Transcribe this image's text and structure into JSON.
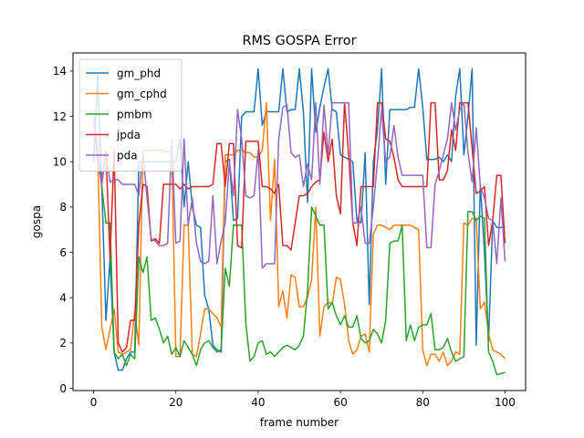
{
  "chart_data": {
    "type": "line",
    "title": "RMS GOSPA Error",
    "xlabel": "frame number",
    "ylabel": "gospa",
    "xlim": [
      -5,
      105
    ],
    "ylim": [
      -0.1,
      14.8
    ],
    "xticks": [
      0,
      20,
      40,
      60,
      80,
      100
    ],
    "yticks": [
      0,
      2,
      4,
      6,
      8,
      10,
      12,
      14
    ],
    "grid": false,
    "legend": "top-left",
    "series": [
      {
        "name": "gm_phd",
        "color": "#1f77b4",
        "values": [
          10.0,
          13.8,
          8.9,
          3.0,
          5.7,
          1.6,
          0.8,
          0.8,
          1.3,
          1.6,
          1.6,
          10.0,
          10.0,
          10.0,
          10.0,
          10.0,
          10.0,
          10.0,
          10.0,
          10.0,
          10.0,
          11.0,
          8.0,
          10.0,
          8.0,
          7.2,
          7.1,
          4.1,
          3.5,
          1.9,
          1.7,
          1.6,
          10.0,
          10.1,
          7.4,
          7.5,
          12.0,
          12.2,
          12.2,
          12.2,
          14.1,
          11.6,
          12.2,
          12.2,
          12.2,
          12.2,
          14.1,
          12.2,
          12.3,
          12.3,
          14.1,
          12.2,
          8.2,
          14.1,
          11.3,
          12.4,
          13.3,
          14.1,
          12.3,
          12.2,
          10.3,
          10.2,
          10.1,
          10.0,
          7.4,
          7.3,
          10.4,
          3.7,
          10.0,
          11.4,
          14.1,
          9.0,
          12.3,
          12.3,
          12.3,
          12.3,
          12.3,
          12.4,
          12.4,
          14.1,
          12.4,
          10.1,
          10.1,
          10.1,
          10.2,
          10.0,
          10.3,
          10.0,
          12.9,
          14.1,
          10.3,
          12.0,
          14.1,
          1.9,
          9.0,
          6.0,
          2.1,
          7.4,
          7.1,
          7.1,
          7.1
        ]
      },
      {
        "name": "gm_cphd",
        "color": "#ff7f0e",
        "values": [
          12.0,
          10.5,
          2.7,
          1.7,
          2.6,
          3.5,
          1.6,
          1.5,
          1.6,
          1.7,
          3.4,
          1.9,
          10.5,
          10.5,
          10.5,
          10.5,
          10.5,
          10.5,
          10.4,
          10.5,
          1.4,
          1.4,
          7.2,
          7.2,
          1.5,
          1.4,
          2.4,
          3.5,
          3.5,
          3.3,
          3.1,
          2.7,
          10.3,
          10.3,
          10.3,
          10.5,
          10.5,
          10.4,
          10.4,
          10.2,
          10.2,
          10.5,
          12.6,
          7.4,
          10.1,
          3.6,
          4.3,
          3.1,
          5.0,
          4.9,
          3.6,
          3.6,
          4.0,
          4.8,
          8.0,
          2.3,
          3.6,
          3.8,
          3.7,
          4.9,
          4.8,
          3.7,
          2.1,
          1.5,
          1.7,
          2.3,
          2.4,
          1.6,
          6.8,
          7.2,
          7.2,
          7.1,
          7.0,
          7.2,
          7.2,
          7.2,
          7.2,
          7.2,
          7.1,
          7.0,
          1.7,
          1.0,
          1.5,
          1.5,
          1.2,
          1.6,
          1.0,
          1.2,
          1.6,
          1.5,
          7.3,
          7.2,
          7.5,
          7.5,
          3.5,
          3.8,
          2.4,
          1.7,
          1.6,
          1.5,
          1.3
        ]
      },
      {
        "name": "pmbm",
        "color": "#2ca02c",
        "values": [
          12.0,
          10.5,
          8.9,
          7.3,
          7.3,
          1.6,
          1.3,
          1.5,
          1.0,
          1.5,
          1.3,
          5.8,
          5.1,
          5.8,
          3.0,
          3.1,
          2.6,
          2.0,
          2.3,
          1.5,
          1.8,
          1.4,
          2.1,
          1.8,
          1.5,
          1.0,
          1.7,
          2.0,
          2.1,
          1.8,
          1.6,
          1.7,
          5.3,
          4.5,
          7.2,
          7.2,
          7.2,
          2.9,
          1.2,
          1.4,
          2.0,
          2.1,
          1.5,
          1.6,
          1.4,
          1.6,
          1.8,
          1.9,
          1.8,
          1.7,
          1.9,
          2.3,
          4.3,
          8.0,
          7.6,
          7.2,
          7.2,
          3.5,
          3.8,
          3.2,
          2.8,
          3.2,
          2.7,
          2.7,
          3.2,
          2.2,
          2.0,
          2.1,
          2.6,
          2.4,
          2.0,
          3.0,
          6.4,
          6.5,
          6.5,
          7.2,
          2.1,
          2.8,
          2.1,
          2.7,
          2.8,
          2.8,
          3.3,
          1.7,
          1.7,
          1.8,
          2.2,
          1.6,
          1.2,
          1.3,
          1.4,
          7.8,
          7.8,
          7.4,
          7.6,
          7.5,
          1.6,
          1.2,
          0.6,
          0.65,
          0.7
        ]
      },
      {
        "name": "jpda",
        "color": "#d62728",
        "values": [
          12.0,
          10.1,
          9.0,
          10.5,
          5.7,
          10.5,
          2.0,
          1.6,
          1.8,
          3.0,
          3.0,
          7.2,
          9.0,
          8.9,
          6.5,
          6.6,
          6.4,
          9.0,
          9.0,
          9.0,
          9.0,
          8.8,
          9.0,
          8.8,
          8.9,
          8.9,
          8.9,
          8.9,
          8.9,
          9.0,
          10.8,
          10.8,
          8.9,
          10.8,
          10.8,
          6.3,
          6.2,
          10.9,
          10.9,
          10.9,
          10.9,
          8.9,
          8.9,
          8.8,
          8.6,
          9.0,
          6.3,
          6.3,
          6.1,
          7.3,
          8.5,
          8.5,
          8.6,
          8.9,
          9.1,
          9.2,
          11.3,
          10.0,
          11.0,
          8.5,
          7.7,
          12.6,
          10.3,
          7.3,
          6.3,
          8.9,
          8.9,
          8.9,
          8.9,
          12.6,
          12.6,
          11.0,
          10.9,
          10.2,
          9.2,
          8.9,
          8.9,
          8.9,
          8.9,
          8.9,
          8.9,
          8.9,
          12.6,
          12.6,
          9.2,
          9.2,
          9.6,
          11.4,
          10.5,
          12.6,
          12.6,
          12.6,
          10.6,
          8.6,
          8.7,
          8.9,
          6.3,
          7.4,
          9.4,
          9.4,
          6.4
        ]
      },
      {
        "name": "pda",
        "color": "#9467bd",
        "values": [
          12.0,
          10.5,
          9.0,
          10.5,
          9.1,
          9.2,
          9.2,
          9.0,
          9.0,
          9.0,
          9.0,
          8.5,
          10.4,
          8.4,
          6.6,
          6.5,
          6.3,
          6.3,
          6.4,
          11.0,
          6.4,
          6.5,
          11.0,
          7.2,
          8.4,
          6.4,
          5.6,
          5.5,
          5.6,
          8.5,
          5.5,
          6.5,
          7.3,
          10.0,
          8.5,
          12.3,
          11.0,
          8.5,
          8.4,
          8.5,
          10.5,
          5.3,
          5.5,
          5.5,
          5.5,
          11.0,
          12.4,
          12.5,
          10.4,
          10.2,
          10.3,
          8.9,
          9.9,
          9.2,
          12.6,
          9.0,
          12.5,
          10.3,
          12.6,
          12.6,
          12.6,
          12.6,
          12.6,
          7.3,
          7.3,
          8.0,
          6.4,
          6.4,
          8.0,
          10.0,
          12.3,
          10.0,
          10.2,
          11.6,
          10.2,
          9.4,
          9.4,
          9.4,
          9.4,
          9.4,
          9.4,
          6.2,
          6.2,
          9.0,
          9.6,
          10.3,
          11.0,
          12.6,
          11.4,
          12.3,
          12.6,
          10.4,
          9.1,
          11.5,
          8.9,
          8.4,
          7.5,
          7.4,
          5.5,
          8.4,
          5.6
        ]
      }
    ]
  }
}
